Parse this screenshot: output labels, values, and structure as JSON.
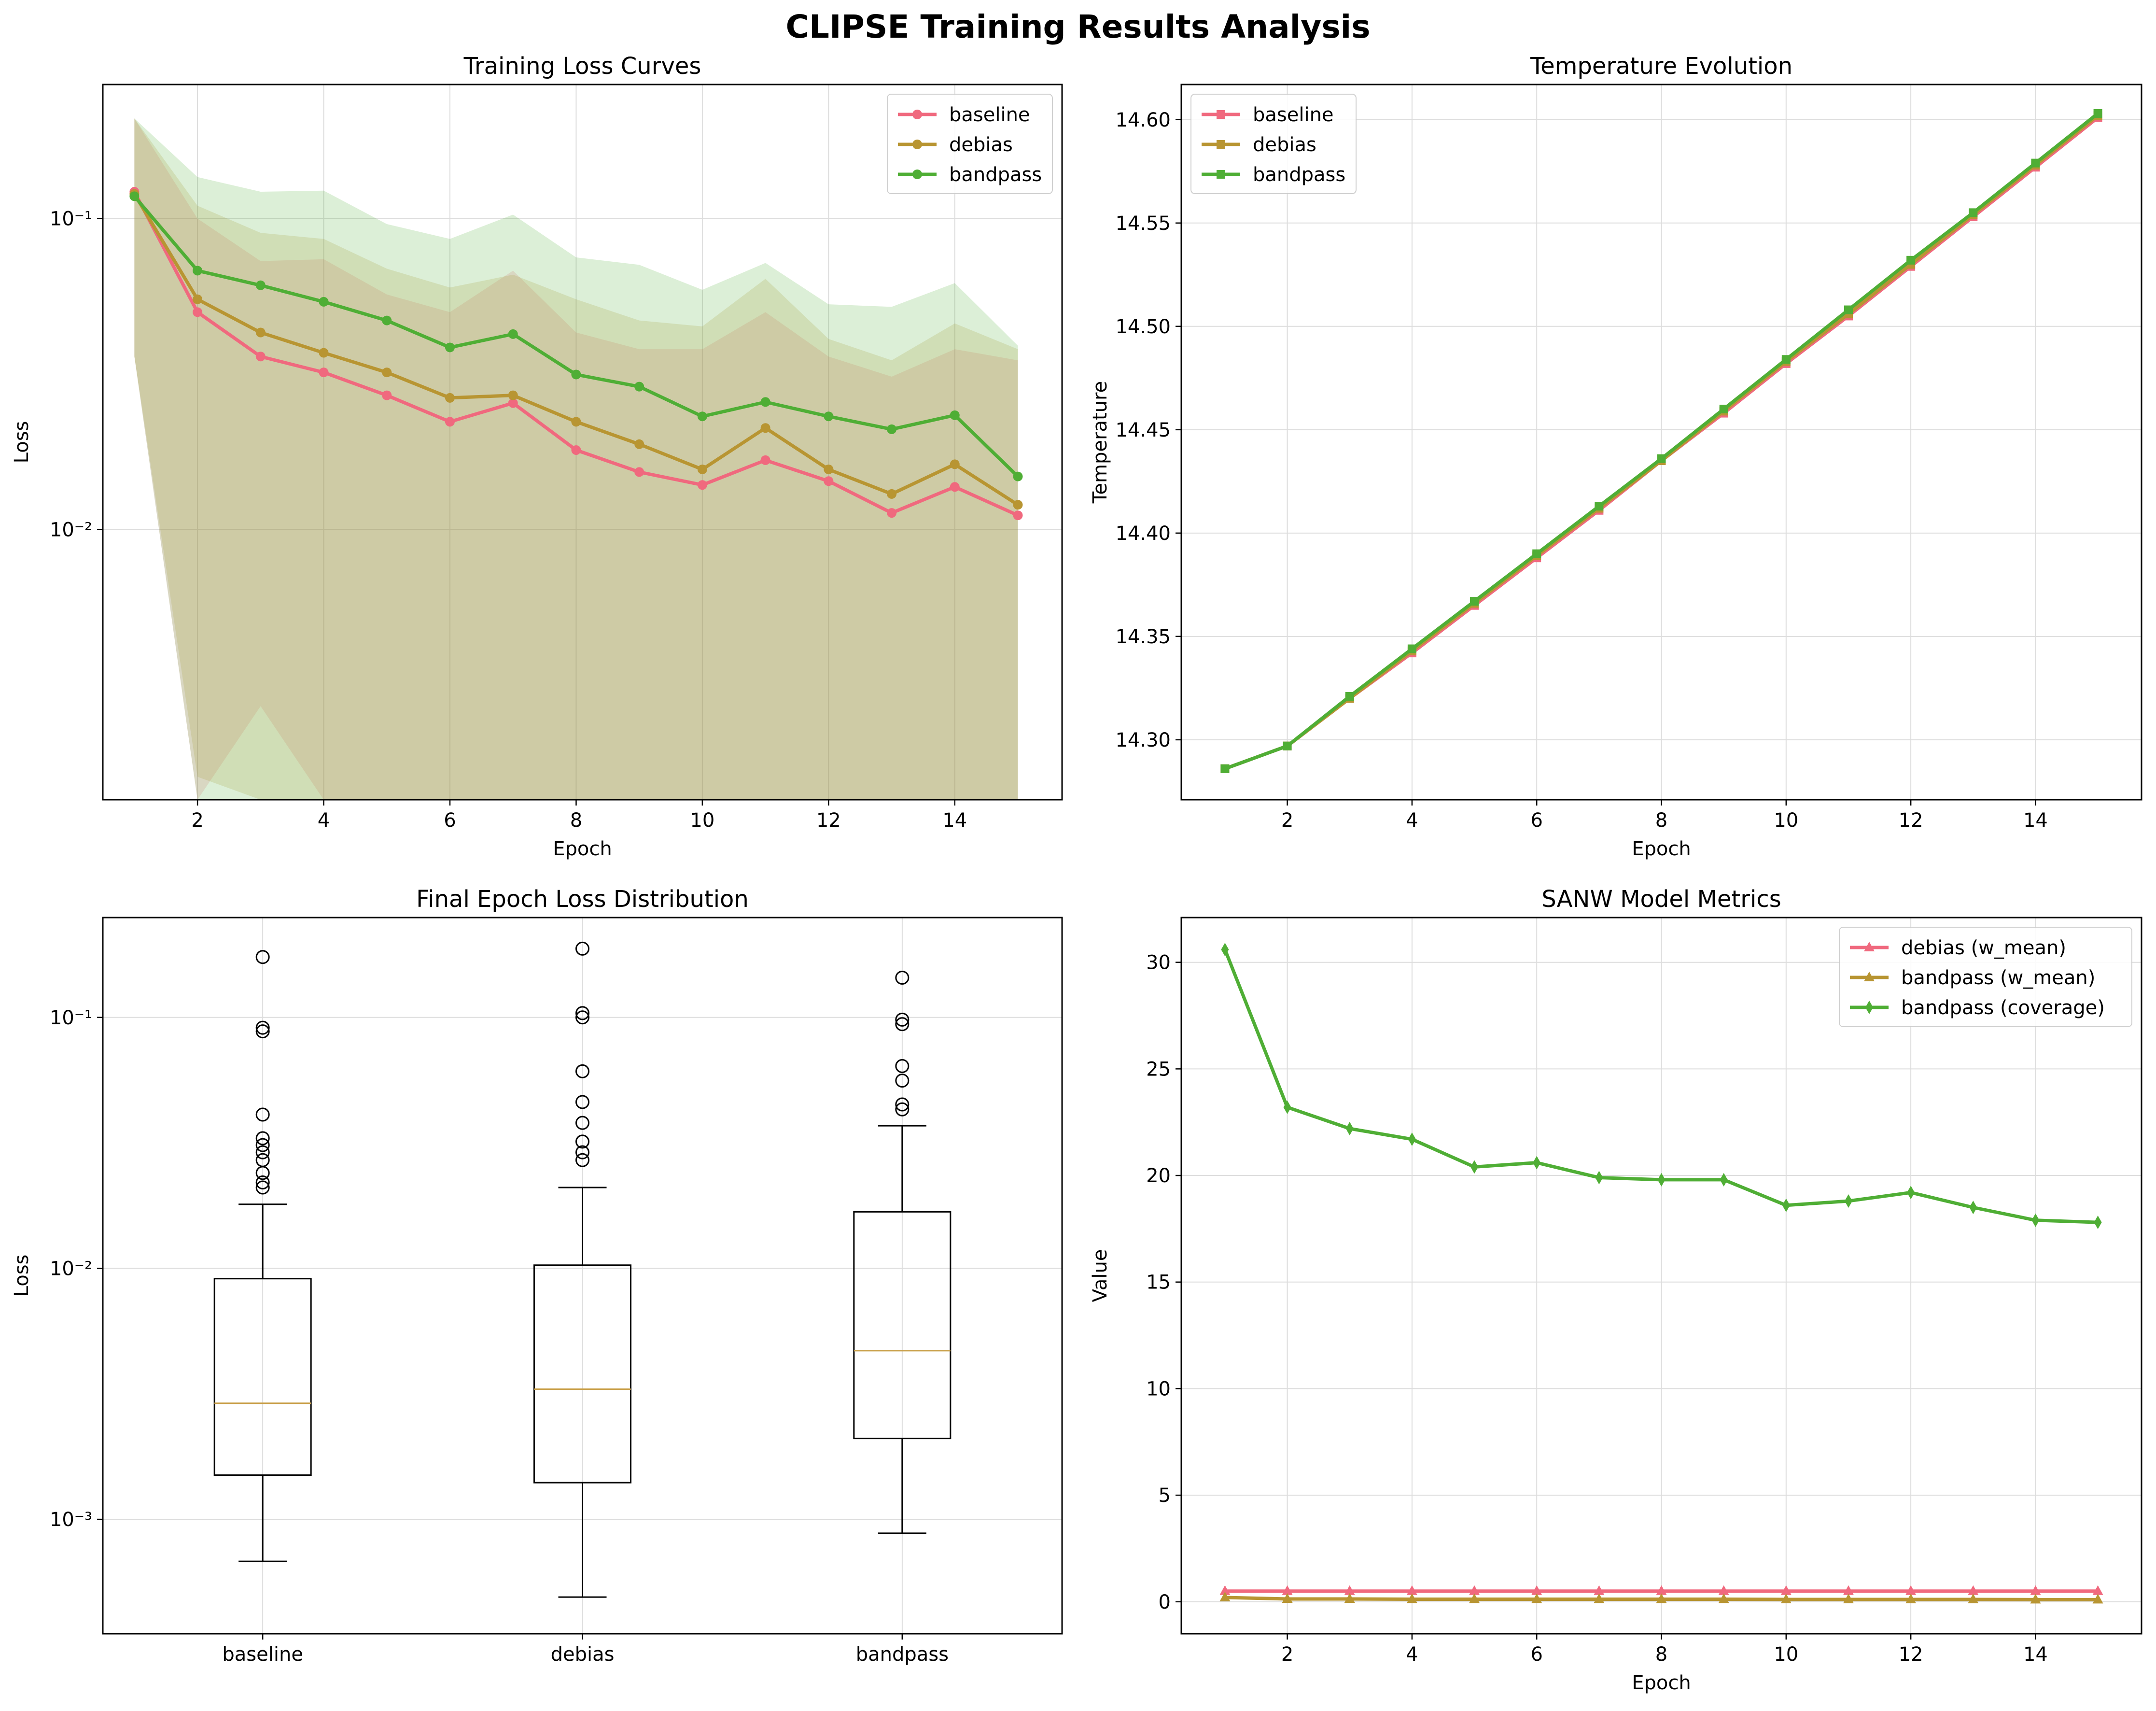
{
  "figure_title": "CLIPSE Training Results Analysis",
  "colors": {
    "baseline": "#f0697e",
    "debias": "#b89532",
    "bandpass": "#4fae35",
    "median": "#c9a04a",
    "grid": "#dddddd"
  },
  "chart_data": [
    {
      "type": "line",
      "title": "Training Loss Curves",
      "xlabel": "Epoch",
      "ylabel": "Loss",
      "yscale": "log",
      "xlim": [
        0.5,
        15.7
      ],
      "ylim": [
        0.00135,
        0.27
      ],
      "x": [
        1,
        2,
        3,
        4,
        5,
        6,
        7,
        8,
        9,
        10,
        11,
        12,
        13,
        14,
        15
      ],
      "xticks": [
        2,
        4,
        6,
        8,
        10,
        12,
        14
      ],
      "yticks": [
        {
          "value": 0.01,
          "label": "10⁻²"
        },
        {
          "value": 0.1,
          "label": "10⁻¹"
        }
      ],
      "legend": "top-right",
      "grid": true,
      "series": [
        {
          "name": "baseline",
          "color": "#f0697e",
          "values": [
            0.122,
            0.05,
            0.036,
            0.032,
            0.027,
            0.0222,
            0.0255,
            0.018,
            0.0153,
            0.0139,
            0.0167,
            0.0143,
            0.0113,
            0.0137,
            0.0111
          ],
          "band_low": [
            0.036,
            0.00135,
            0.0027,
            0.00135,
            0.00135,
            0.00135,
            0.00135,
            0.00135,
            0.00135,
            0.00135,
            0.00135,
            0.00135,
            0.00135,
            0.00135,
            0.00135
          ],
          "band_high": [
            0.21,
            0.1,
            0.073,
            0.074,
            0.057,
            0.05,
            0.068,
            0.043,
            0.038,
            0.038,
            0.05,
            0.036,
            0.031,
            0.038,
            0.035
          ]
        },
        {
          "name": "debias",
          "color": "#b89532",
          "values": [
            0.12,
            0.055,
            0.043,
            0.037,
            0.032,
            0.0265,
            0.027,
            0.0222,
            0.0188,
            0.0156,
            0.0212,
            0.0156,
            0.013,
            0.0162,
            0.012
          ],
          "band_low": [
            0.036,
            0.0016,
            0.00135,
            0.00135,
            0.00135,
            0.00135,
            0.00135,
            0.00135,
            0.00135,
            0.00135,
            0.00135,
            0.00135,
            0.00135,
            0.00135,
            0.00135
          ],
          "band_high": [
            0.21,
            0.11,
            0.09,
            0.086,
            0.069,
            0.06,
            0.066,
            0.055,
            0.047,
            0.045,
            0.064,
            0.041,
            0.035,
            0.046,
            0.038
          ]
        },
        {
          "name": "bandpass",
          "color": "#4fae35",
          "values": [
            0.118,
            0.068,
            0.061,
            0.054,
            0.047,
            0.0385,
            0.0425,
            0.0315,
            0.0288,
            0.0231,
            0.0257,
            0.0231,
            0.021,
            0.0233,
            0.0148
          ],
          "band_low": [
            0.036,
            0.00135,
            0.00135,
            0.00135,
            0.00135,
            0.00135,
            0.00135,
            0.00135,
            0.00135,
            0.00135,
            0.00135,
            0.00135,
            0.00135,
            0.00135,
            0.00135
          ],
          "band_high": [
            0.21,
            0.136,
            0.122,
            0.123,
            0.096,
            0.086,
            0.103,
            0.075,
            0.071,
            0.059,
            0.072,
            0.053,
            0.052,
            0.062,
            0.039
          ]
        }
      ]
    },
    {
      "type": "line",
      "title": "Temperature Evolution",
      "xlabel": "Epoch",
      "ylabel": "Temperature",
      "xlim": [
        0.3,
        15.7
      ],
      "ylim": [
        14.271,
        14.617
      ],
      "x": [
        1,
        2,
        3,
        4,
        5,
        6,
        7,
        8,
        9,
        10,
        11,
        12,
        13,
        14,
        15
      ],
      "xticks": [
        2,
        4,
        6,
        8,
        10,
        12,
        14
      ],
      "yticks": [
        14.3,
        14.35,
        14.4,
        14.45,
        14.5,
        14.55,
        14.6
      ],
      "legend": "top-left",
      "grid": true,
      "series": [
        {
          "name": "baseline",
          "color": "#f0697e",
          "values": [
            14.286,
            14.297,
            14.32,
            14.342,
            14.365,
            14.388,
            14.411,
            14.435,
            14.458,
            14.482,
            14.505,
            14.529,
            14.553,
            14.577,
            14.601
          ]
        },
        {
          "name": "debias",
          "color": "#b89532",
          "values": [
            14.286,
            14.297,
            14.32,
            14.343,
            14.366,
            14.389,
            14.412,
            14.435,
            14.459,
            14.483,
            14.506,
            14.53,
            14.554,
            14.578,
            14.602
          ]
        },
        {
          "name": "bandpass",
          "color": "#4fae35",
          "values": [
            14.286,
            14.297,
            14.321,
            14.344,
            14.367,
            14.39,
            14.413,
            14.436,
            14.46,
            14.484,
            14.508,
            14.532,
            14.555,
            14.579,
            14.603
          ]
        }
      ]
    },
    {
      "type": "box",
      "title": "Final Epoch Loss Distribution",
      "ylabel": "Loss",
      "yscale": "log",
      "ylim": [
        0.00035,
        0.25
      ],
      "yticks": [
        {
          "value": 0.001,
          "label": "10⁻³"
        },
        {
          "value": 0.01,
          "label": "10⁻²"
        },
        {
          "value": 0.1,
          "label": "10⁻¹"
        }
      ],
      "grid": true,
      "categories": [
        "baseline",
        "debias",
        "bandpass"
      ],
      "boxes": [
        {
          "name": "baseline",
          "whisker_low": 0.00068,
          "q1": 0.0015,
          "median": 0.0029,
          "q3": 0.0091,
          "whisker_high": 0.018,
          "outliers": [
            0.021,
            0.022,
            0.024,
            0.027,
            0.029,
            0.031,
            0.033,
            0.041,
            0.088,
            0.091,
            0.174
          ]
        },
        {
          "name": "debias",
          "whisker_low": 0.00049,
          "q1": 0.0014,
          "median": 0.0033,
          "q3": 0.0103,
          "whisker_high": 0.021,
          "outliers": [
            0.027,
            0.029,
            0.032,
            0.038,
            0.046,
            0.061,
            0.1,
            0.104,
            0.188
          ]
        },
        {
          "name": "bandpass",
          "whisker_low": 0.00088,
          "q1": 0.0021,
          "median": 0.0047,
          "q3": 0.0168,
          "whisker_high": 0.037,
          "outliers": [
            0.043,
            0.045,
            0.056,
            0.064,
            0.094,
            0.098,
            0.144
          ]
        }
      ]
    },
    {
      "type": "line",
      "title": "SANW Model Metrics",
      "xlabel": "Epoch",
      "ylabel": "Value",
      "xlim": [
        0.3,
        15.7
      ],
      "ylim": [
        -1.5,
        32.1
      ],
      "x": [
        1,
        2,
        3,
        4,
        5,
        6,
        7,
        8,
        9,
        10,
        11,
        12,
        13,
        14,
        15
      ],
      "xticks": [
        2,
        4,
        6,
        8,
        10,
        12,
        14
      ],
      "yticks": [
        0,
        5,
        10,
        15,
        20,
        25,
        30
      ],
      "legend": "top-right",
      "grid": true,
      "series": [
        {
          "name": "debias (w_mean)",
          "color": "#f0697e",
          "marker": "triangle",
          "values": [
            0.5,
            0.5,
            0.5,
            0.5,
            0.5,
            0.5,
            0.5,
            0.5,
            0.5,
            0.5,
            0.5,
            0.5,
            0.5,
            0.5,
            0.5
          ]
        },
        {
          "name": "bandpass (w_mean)",
          "color": "#b89532",
          "marker": "triangle",
          "values": [
            0.2,
            0.13,
            0.13,
            0.12,
            0.12,
            0.12,
            0.12,
            0.12,
            0.12,
            0.11,
            0.11,
            0.11,
            0.11,
            0.1,
            0.1
          ]
        },
        {
          "name": "bandpass (coverage)",
          "color": "#4fae35",
          "marker": "diamond",
          "values": [
            30.6,
            23.2,
            22.2,
            21.7,
            20.4,
            20.6,
            19.9,
            19.8,
            19.8,
            18.6,
            18.8,
            19.2,
            18.5,
            17.9,
            17.8
          ]
        }
      ]
    }
  ]
}
